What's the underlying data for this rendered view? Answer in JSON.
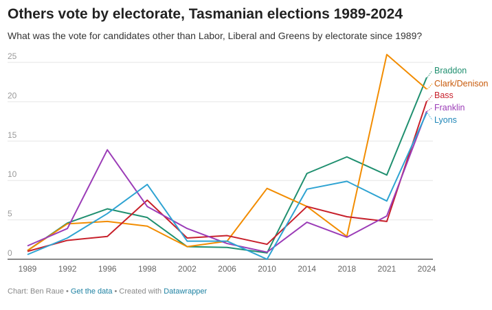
{
  "title": "Others vote by electorate, Tasmanian elections 1989-2024",
  "subtitle": "What was the vote for candidates other than Labor, Liberal and Greens by electorate since 1989?",
  "footer": {
    "credit": "Chart: Ben Raue",
    "sep": " • ",
    "data_link": "Get the data",
    "created": "Created with ",
    "tool_link": "Datawrapper"
  },
  "chart_data": {
    "type": "line",
    "title": "Others vote by electorate, Tasmanian elections 1989-2024",
    "xlabel": "",
    "ylabel": "",
    "ylim": [
      0,
      25
    ],
    "yticks": [
      0,
      5,
      10,
      15,
      20,
      25
    ],
    "categories": [
      "1989",
      "1992",
      "1996",
      "1998",
      "2002",
      "2006",
      "2010",
      "2014",
      "2018",
      "2021",
      "2024"
    ],
    "grid": true,
    "legend": "direct labels right",
    "series": [
      {
        "name": "Braddon",
        "color": "#1f8f6f",
        "label_color": "#1f8f6f",
        "values": [
          1.1,
          4.6,
          6.4,
          5.3,
          1.6,
          1.5,
          0.8,
          10.9,
          13.0,
          10.7,
          23.1
        ]
      },
      {
        "name": "Clark/Denison",
        "color": "#f28c00",
        "label_color": "#c85a0a",
        "values": [
          1.1,
          4.5,
          4.8,
          4.2,
          1.6,
          2.3,
          9.0,
          6.7,
          2.9,
          26.0,
          21.6
        ]
      },
      {
        "name": "Bass",
        "color": "#c71f2a",
        "label_color": "#c71f2a",
        "values": [
          1.0,
          2.4,
          2.9,
          7.5,
          2.7,
          3.0,
          1.9,
          6.7,
          5.4,
          4.8,
          20.1
        ]
      },
      {
        "name": "Franklin",
        "color": "#9b3cb7",
        "label_color": "#9b3cb7",
        "values": [
          1.7,
          3.9,
          13.9,
          6.7,
          3.9,
          2.0,
          0.9,
          4.7,
          2.8,
          5.5,
          18.8
        ]
      },
      {
        "name": "Lyons",
        "color": "#2ea3d2",
        "label_color": "#1f86b8",
        "values": [
          0.6,
          2.7,
          5.8,
          9.5,
          2.3,
          2.3,
          0.0,
          8.9,
          9.9,
          7.4,
          18.6
        ]
      }
    ]
  }
}
